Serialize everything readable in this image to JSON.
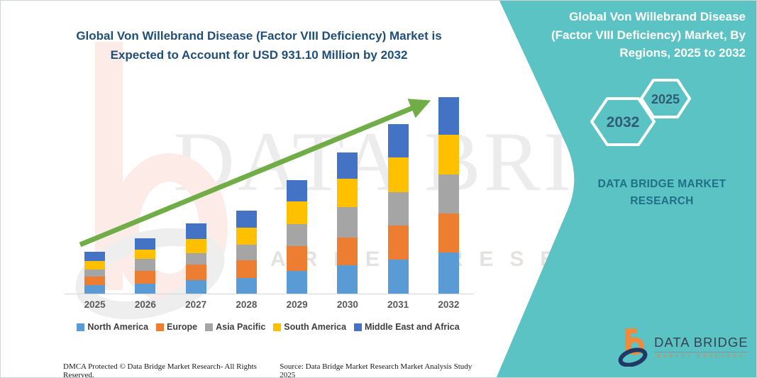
{
  "header": {
    "title_line1": "Global Von Willebrand Disease (Factor VIII Deficiency) Market is",
    "title_line2": "Expected to Account for USD 931.10 Million by 2032"
  },
  "side_panel": {
    "title": "Global Von Willebrand Disease (Factor VIII Deficiency) Market, By Regions, 2025 to 2032",
    "hexagons": [
      {
        "label": "2032"
      },
      {
        "label": "2025"
      }
    ],
    "brand": "DATA BRIDGE MARKET RESEARCH",
    "background_color": "#5CC3C4"
  },
  "watermark": {
    "big": "DATA BRIDGE",
    "row": "MARKET RESEARCH"
  },
  "logo": {
    "brand": "DATA BRIDGE",
    "tagline": "MARKET RESEARCH"
  },
  "footer": {
    "dmca": "DMCA Protected © Data Bridge Market Research-  All Rights Reserved.",
    "source": "Source: Data Bridge Market Research  Market Analysis Study 2025"
  },
  "chart_data": {
    "type": "bar",
    "stacked": true,
    "title": "Global Von Willebrand Disease (Factor VIII Deficiency) Market is Expected to Account for USD 931.10 Million by 2032",
    "unit": "USD Million",
    "categories": [
      "2025",
      "2026",
      "2027",
      "2028",
      "2029",
      "2030",
      "2031",
      "2032"
    ],
    "series": [
      {
        "name": "North America",
        "color": "#5B9BD5",
        "values": [
          41.4,
          47.1,
          63.9,
          75.0,
          108.6,
          134.5,
          162.4,
          194.0
        ]
      },
      {
        "name": "Europe",
        "color": "#ED7D31",
        "values": [
          39.3,
          59.5,
          73.0,
          84.1,
          115.3,
          131.1,
          160.4,
          187.3
        ]
      },
      {
        "name": "Asia Pacific",
        "color": "#A5A5A5",
        "values": [
          33.6,
          58.2,
          56.1,
          73.0,
          104.2,
          143.6,
          159.0,
          184.9
        ]
      },
      {
        "name": "South America",
        "color": "#FFC000",
        "values": [
          39.3,
          44.7,
          67.2,
          80.7,
          108.6,
          134.5,
          162.4,
          188.3
        ]
      },
      {
        "name": "Middle East and Africa",
        "color": "#4472C4",
        "values": [
          44.7,
          52.8,
          73.0,
          81.7,
          100.9,
          126.7,
          159.0,
          176.6
        ]
      }
    ],
    "totals_estimated": [
      198.3,
      262.3,
      333.2,
      394.5,
      537.6,
      670.4,
      803.2,
      931.1
    ],
    "final_year_total_label": "USD 931.10 Million",
    "trend_arrow_color": "#70AD47",
    "legend_position": "bottom",
    "y_axis_visible": false,
    "ylim": [
      0,
      960
    ]
  }
}
